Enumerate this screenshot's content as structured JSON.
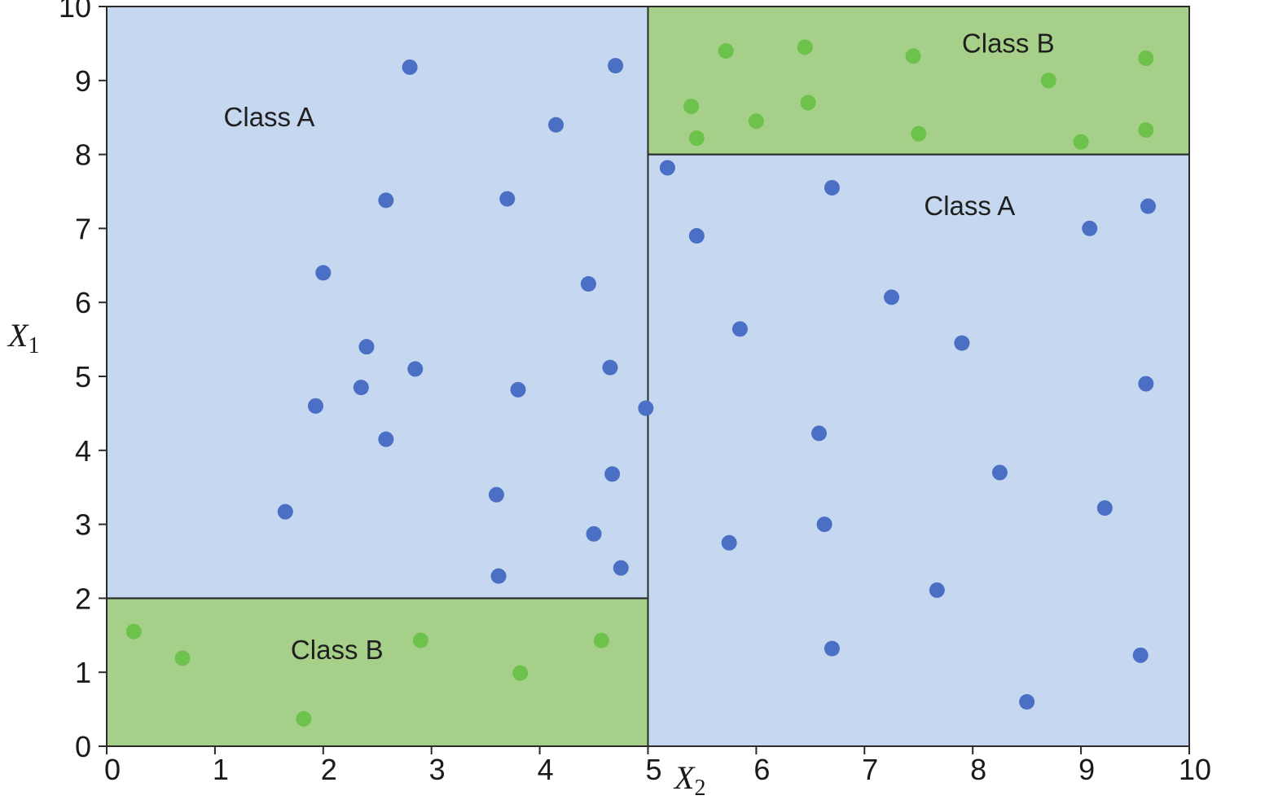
{
  "chart_data": {
    "type": "scatter",
    "title": "",
    "xlabel": "X",
    "xlabel_subscript": "2",
    "ylabel": "X",
    "ylabel_subscript": "1",
    "xlim": [
      0,
      10
    ],
    "ylim": [
      0,
      10
    ],
    "x_ticks": [
      "0",
      "1",
      "2",
      "3",
      "4",
      "5",
      "6",
      "7",
      "8",
      "9",
      "10"
    ],
    "y_ticks": [
      "0",
      "1",
      "2",
      "3",
      "4",
      "5",
      "6",
      "7",
      "8",
      "9",
      "10"
    ],
    "grid": false,
    "colors": {
      "region_a": "#c5d8ef",
      "region_b": "#a6d08a",
      "point_a": "#4a6fc4",
      "point_b": "#6cc24a",
      "boundary": "#2b2b2b"
    },
    "regions": [
      {
        "class": "A",
        "label": "Class A",
        "x": [
          0,
          5
        ],
        "y": [
          2,
          10
        ],
        "label_at": [
          1.08,
          8.5
        ]
      },
      {
        "class": "B",
        "label": "Class B",
        "x": [
          0,
          5
        ],
        "y": [
          0,
          2
        ],
        "label_at": [
          1.7,
          1.3
        ]
      },
      {
        "class": "B",
        "label": "Class B",
        "x": [
          5,
          10
        ],
        "y": [
          8,
          10
        ],
        "label_at": [
          7.9,
          9.5
        ]
      },
      {
        "class": "A",
        "label": "Class A",
        "x": [
          5,
          10
        ],
        "y": [
          0,
          8
        ],
        "label_at": [
          7.55,
          7.3
        ]
      }
    ],
    "series": [
      {
        "class": "A",
        "points": [
          [
            2.8,
            9.18
          ],
          [
            4.7,
            9.2
          ],
          [
            4.15,
            8.4
          ],
          [
            2.58,
            7.38
          ],
          [
            3.7,
            7.4
          ],
          [
            2.0,
            6.4
          ],
          [
            4.45,
            6.25
          ],
          [
            2.4,
            5.4
          ],
          [
            2.85,
            5.1
          ],
          [
            4.65,
            5.12
          ],
          [
            2.35,
            4.85
          ],
          [
            1.93,
            4.6
          ],
          [
            3.8,
            4.82
          ],
          [
            2.58,
            4.15
          ],
          [
            3.6,
            3.4
          ],
          [
            1.65,
            3.17
          ],
          [
            4.67,
            3.68
          ],
          [
            4.5,
            2.87
          ],
          [
            3.62,
            2.3
          ],
          [
            4.75,
            2.41
          ],
          [
            4.98,
            4.57
          ],
          [
            5.18,
            7.82
          ],
          [
            5.45,
            6.9
          ],
          [
            5.85,
            5.64
          ],
          [
            6.7,
            7.55
          ],
          [
            7.25,
            6.07
          ],
          [
            5.75,
            2.75
          ],
          [
            6.58,
            4.23
          ],
          [
            6.63,
            3.0
          ],
          [
            6.7,
            1.32
          ],
          [
            7.9,
            5.45
          ],
          [
            8.25,
            3.7
          ],
          [
            7.67,
            2.11
          ],
          [
            8.5,
            0.6
          ],
          [
            9.08,
            7.0
          ],
          [
            9.62,
            7.3
          ],
          [
            9.6,
            4.9
          ],
          [
            9.22,
            3.22
          ],
          [
            9.55,
            1.23
          ]
        ]
      },
      {
        "class": "B",
        "points": [
          [
            0.25,
            1.55
          ],
          [
            0.7,
            1.19
          ],
          [
            1.82,
            0.37
          ],
          [
            2.9,
            1.43
          ],
          [
            3.82,
            0.99
          ],
          [
            4.57,
            1.43
          ],
          [
            5.4,
            8.65
          ],
          [
            5.45,
            8.22
          ],
          [
            5.72,
            9.4
          ],
          [
            6.0,
            8.45
          ],
          [
            6.45,
            9.45
          ],
          [
            6.48,
            8.7
          ],
          [
            7.45,
            9.33
          ],
          [
            7.5,
            8.28
          ],
          [
            8.7,
            9.0
          ],
          [
            9.0,
            8.17
          ],
          [
            9.6,
            9.3
          ],
          [
            9.6,
            8.33
          ]
        ]
      }
    ]
  }
}
